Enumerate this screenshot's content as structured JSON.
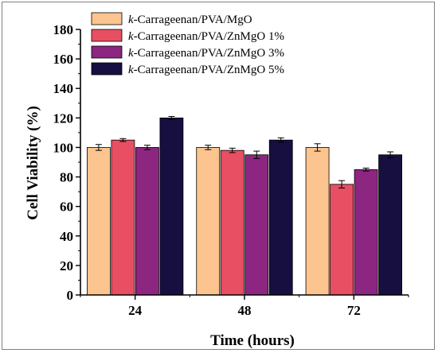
{
  "chart_data": {
    "type": "bar",
    "xlabel": "Time (hours)",
    "ylabel": "Cell Viability (%)",
    "categories": [
      "24",
      "48",
      "72"
    ],
    "ylim": [
      0,
      180
    ],
    "yticks": [
      0,
      20,
      40,
      60,
      80,
      100,
      120,
      140,
      160,
      180
    ],
    "legend_position": "top-left",
    "grid": false,
    "error_bars": true,
    "series": [
      {
        "name_prefix": "k",
        "name_suffix": "-Carrageenan/PVA/MgO",
        "color": "#FCC48E",
        "values": [
          100,
          100,
          100
        ],
        "errors": [
          2,
          1.5,
          2.5
        ]
      },
      {
        "name_prefix": "k",
        "name_suffix": "-Carrageenan/PVA/ZnMgO 1%",
        "color": "#E84F63",
        "values": [
          105,
          98,
          75
        ],
        "errors": [
          1,
          1.5,
          2.5
        ]
      },
      {
        "name_prefix": "k",
        "name_suffix": "-Carrageenan/PVA/ZnMgO 3%",
        "color": "#8C2680",
        "values": [
          100,
          95,
          85
        ],
        "errors": [
          1.5,
          2.5,
          1
        ]
      },
      {
        "name_prefix": "k",
        "name_suffix": "-Carrageenan/PVA/ZnMgO 5%",
        "color": "#160F40",
        "values": [
          120,
          105,
          95
        ],
        "errors": [
          1,
          1.5,
          2
        ]
      }
    ]
  }
}
